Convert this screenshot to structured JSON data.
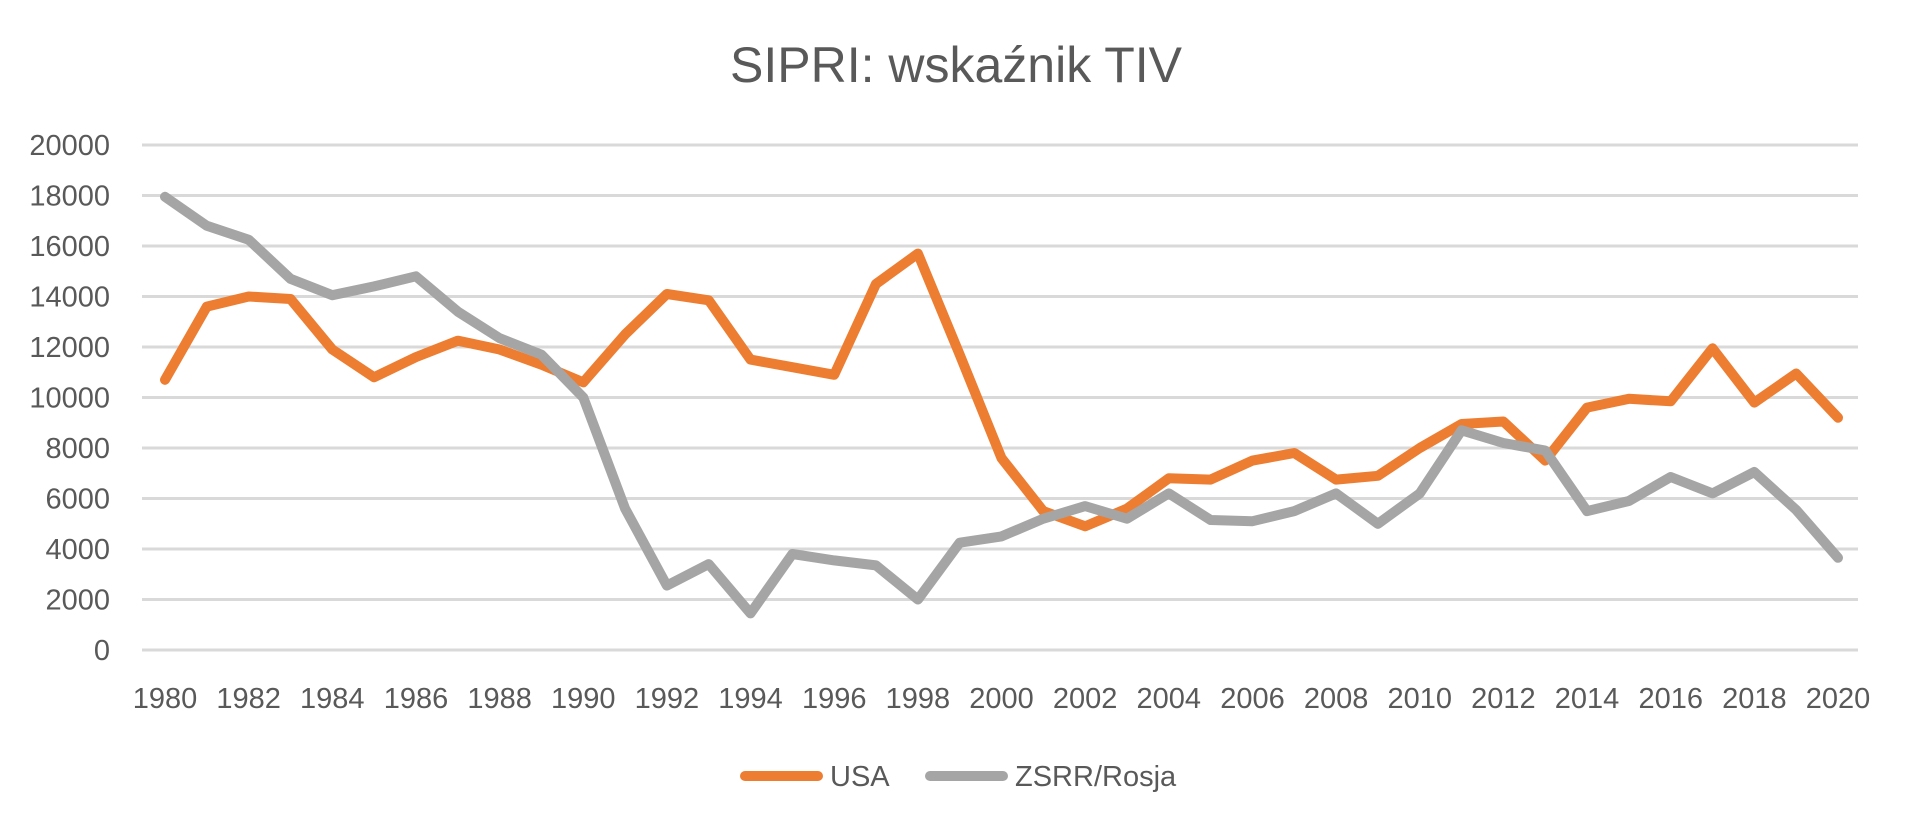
{
  "chart_data": {
    "type": "line",
    "title": "SIPRI: wskaźnik TIV",
    "xlabel": "",
    "ylabel": "",
    "ylim": [
      0,
      20000
    ],
    "yticks": [
      0,
      2000,
      4000,
      6000,
      8000,
      10000,
      12000,
      14000,
      16000,
      18000,
      20000
    ],
    "x": [
      1980,
      1981,
      1982,
      1983,
      1984,
      1985,
      1986,
      1987,
      1988,
      1989,
      1990,
      1991,
      1992,
      1993,
      1994,
      1995,
      1996,
      1997,
      1998,
      1999,
      2000,
      2001,
      2002,
      2003,
      2004,
      2005,
      2006,
      2007,
      2008,
      2009,
      2010,
      2011,
      2012,
      2013,
      2014,
      2015,
      2016,
      2017,
      2018,
      2019,
      2020
    ],
    "xticks": [
      1980,
      1982,
      1984,
      1986,
      1988,
      1990,
      1992,
      1994,
      1996,
      1998,
      2000,
      2002,
      2004,
      2006,
      2008,
      2010,
      2012,
      2014,
      2016,
      2018,
      2020
    ],
    "grid": true,
    "legend": "bottom",
    "series": [
      {
        "name": "USA",
        "color": "#ed7d31",
        "values": [
          10700,
          13600,
          14000,
          13900,
          11900,
          10800,
          11600,
          12250,
          11900,
          11300,
          10600,
          12500,
          14100,
          13850,
          11500,
          11200,
          10900,
          14500,
          15700,
          11700,
          7600,
          5500,
          4900,
          5600,
          6800,
          6750,
          7500,
          7800,
          6750,
          6900,
          8000,
          8950,
          9050,
          7500,
          9600,
          9950,
          9850,
          11950,
          9800,
          10950,
          9200
        ]
      },
      {
        "name": "ZSRR/Rosja",
        "color": "#a5a5a5",
        "values": [
          17950,
          16800,
          16250,
          14700,
          14050,
          14400,
          14800,
          13400,
          12350,
          11700,
          10000,
          5600,
          2550,
          3400,
          1450,
          3800,
          3550,
          3350,
          2000,
          4250,
          4500,
          5200,
          5700,
          5200,
          6200,
          5150,
          5100,
          5500,
          6200,
          5000,
          6200,
          8700,
          8200,
          7900,
          5500,
          5900,
          6850,
          6200,
          7050,
          5550,
          3650
        ]
      }
    ]
  }
}
